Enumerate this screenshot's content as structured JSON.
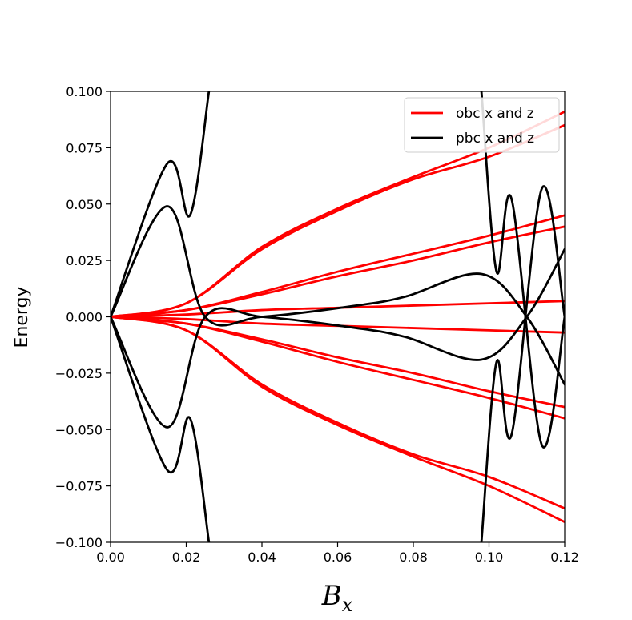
{
  "chart_data": {
    "type": "line",
    "title": "",
    "xlabel": "B",
    "xlabel_subscript": "x",
    "ylabel": "Energy",
    "xlim": [
      0.0,
      0.12
    ],
    "ylim": [
      -0.1,
      0.1
    ],
    "xticks": [
      "0.00",
      "0.02",
      "0.04",
      "0.06",
      "0.08",
      "0.10",
      "0.12"
    ],
    "xtick_values": [
      0.0,
      0.02,
      0.04,
      0.06,
      0.08,
      0.1,
      0.12
    ],
    "yticks": [
      "0.100",
      "0.075",
      "0.050",
      "0.025",
      "0.000",
      "−0.025",
      "−0.050",
      "−0.075",
      "−0.100"
    ],
    "ytick_values": [
      0.1,
      0.075,
      0.05,
      0.025,
      0.0,
      -0.025,
      -0.05,
      -0.075,
      -0.1
    ],
    "grid": false,
    "legend_position": "top-right",
    "series": [
      {
        "name": "obc x and z",
        "color": "#ff0000",
        "curves": [
          {
            "x": [
              0.0,
              0.02,
              0.04,
              0.06,
              0.08,
              0.1,
              0.12
            ],
            "y": [
              0.0,
              0.006,
              0.031,
              0.048,
              0.062,
              0.075,
              0.091
            ]
          },
          {
            "x": [
              0.0,
              0.02,
              0.04,
              0.06,
              0.08,
              0.1,
              0.12
            ],
            "y": [
              0.0,
              0.006,
              0.03,
              0.047,
              0.061,
              0.071,
              0.085
            ]
          },
          {
            "x": [
              0.0,
              0.02,
              0.04,
              0.06,
              0.08,
              0.1,
              0.12
            ],
            "y": [
              0.0,
              0.003,
              0.011,
              0.02,
              0.028,
              0.036,
              0.045
            ]
          },
          {
            "x": [
              0.0,
              0.02,
              0.04,
              0.06,
              0.08,
              0.1,
              0.12
            ],
            "y": [
              0.0,
              0.003,
              0.01,
              0.018,
              0.025,
              0.033,
              0.04
            ]
          },
          {
            "x": [
              0.0,
              0.02,
              0.04,
              0.06,
              0.08,
              0.1,
              0.12
            ],
            "y": [
              0.0,
              0.001,
              0.003,
              0.004,
              0.005,
              0.006,
              0.007
            ]
          },
          {
            "x": [
              0.0,
              0.02,
              0.04,
              0.06,
              0.08,
              0.1,
              0.12
            ],
            "y": [
              0.0,
              -0.001,
              -0.003,
              -0.004,
              -0.005,
              -0.006,
              -0.007
            ]
          },
          {
            "x": [
              0.0,
              0.02,
              0.04,
              0.06,
              0.08,
              0.1,
              0.12
            ],
            "y": [
              0.0,
              -0.003,
              -0.01,
              -0.018,
              -0.025,
              -0.033,
              -0.04
            ]
          },
          {
            "x": [
              0.0,
              0.02,
              0.04,
              0.06,
              0.08,
              0.1,
              0.12
            ],
            "y": [
              0.0,
              -0.003,
              -0.011,
              -0.02,
              -0.028,
              -0.036,
              -0.045
            ]
          },
          {
            "x": [
              0.0,
              0.02,
              0.04,
              0.06,
              0.08,
              0.1,
              0.12
            ],
            "y": [
              0.0,
              -0.006,
              -0.03,
              -0.047,
              -0.061,
              -0.071,
              -0.085
            ]
          },
          {
            "x": [
              0.0,
              0.02,
              0.04,
              0.06,
              0.08,
              0.1,
              0.12
            ],
            "y": [
              0.0,
              -0.006,
              -0.031,
              -0.048,
              -0.062,
              -0.075,
              -0.091
            ]
          }
        ]
      },
      {
        "name": "pbc x and z",
        "color": "#000000",
        "curves": [
          {
            "x": [
              0.0,
              0.015,
              0.021,
              0.026
            ],
            "y": [
              0.0,
              0.068,
              0.045,
              0.1
            ]
          },
          {
            "x": [
              0.0,
              0.015,
              0.021,
              0.026
            ],
            "y": [
              0.0,
              -0.068,
              -0.045,
              -0.1
            ]
          },
          {
            "x": [
              0.0,
              0.015,
              0.025,
              0.04,
              0.065,
              0.078,
              0.098,
              0.11,
              0.12
            ],
            "y": [
              0.0,
              0.049,
              0.0,
              0.0,
              0.005,
              0.009,
              0.019,
              0.0,
              -0.03
            ]
          },
          {
            "x": [
              0.0,
              0.015,
              0.025,
              0.04,
              0.065,
              0.078,
              0.098,
              0.11,
              0.12
            ],
            "y": [
              0.0,
              -0.049,
              0.0,
              0.0,
              -0.005,
              -0.009,
              -0.019,
              0.0,
              0.03
            ]
          },
          {
            "x": [
              0.098,
              0.102,
              0.106,
              0.114,
              0.12
            ],
            "y": [
              -0.1,
              -0.02,
              -0.052,
              0.057,
              0.0
            ]
          },
          {
            "x": [
              0.098,
              0.102,
              0.106,
              0.114,
              0.12
            ],
            "y": [
              0.1,
              0.02,
              0.052,
              -0.057,
              0.0
            ]
          }
        ]
      }
    ]
  }
}
